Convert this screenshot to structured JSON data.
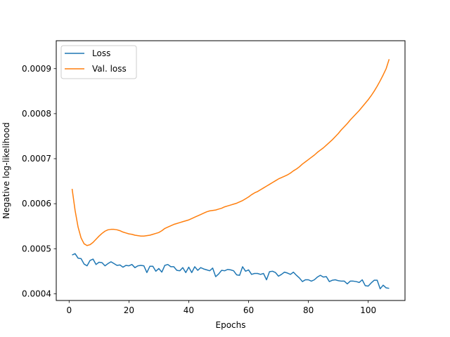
{
  "chart_data": {
    "type": "line",
    "xlabel": "Epochs",
    "ylabel": "Negative log-likelihood",
    "xlim": [
      -4.3,
      112.3
    ],
    "ylim": [
      0.000385,
      0.000962
    ],
    "xticks": [
      0,
      20,
      40,
      60,
      80,
      100
    ],
    "xtick_labels": [
      "0",
      "20",
      "40",
      "60",
      "80",
      "100"
    ],
    "yticks": [
      0.0004,
      0.0005,
      0.0006,
      0.0007,
      0.0008,
      0.0009
    ],
    "ytick_labels": [
      "0.0004",
      "0.0005",
      "0.0006",
      "0.0007",
      "0.0008",
      "0.0009"
    ],
    "grid": false,
    "legend_position": "top-left",
    "series": [
      {
        "name": "Loss",
        "color": "#1f77b4",
        "x": [
          1,
          2,
          3,
          4,
          5,
          6,
          7,
          8,
          9,
          10,
          11,
          12,
          13,
          14,
          15,
          16,
          17,
          18,
          19,
          20,
          21,
          22,
          23,
          24,
          25,
          26,
          27,
          28,
          29,
          30,
          31,
          32,
          33,
          34,
          35,
          36,
          37,
          38,
          39,
          40,
          41,
          42,
          43,
          44,
          45,
          46,
          47,
          48,
          49,
          50,
          51,
          52,
          53,
          54,
          55,
          56,
          57,
          58,
          59,
          60,
          61,
          62,
          63,
          64,
          65,
          66,
          67,
          68,
          69,
          70,
          71,
          72,
          73,
          74,
          75,
          76,
          77,
          78,
          79,
          80,
          81,
          82,
          83,
          84,
          85,
          86,
          87,
          88,
          89,
          90,
          91,
          92,
          93,
          94,
          95,
          96,
          97,
          98,
          99,
          100,
          101,
          102,
          103,
          104,
          105,
          106,
          107
        ],
        "values": [
          0.000486,
          0.000489,
          0.000479,
          0.000478,
          0.000466,
          0.000462,
          0.000474,
          0.000477,
          0.000465,
          0.00047,
          0.000469,
          0.000462,
          0.000467,
          0.000471,
          0.000467,
          0.000463,
          0.000464,
          0.000459,
          0.000463,
          0.000462,
          0.000465,
          0.000458,
          0.000462,
          0.000463,
          0.000462,
          0.000447,
          0.000461,
          0.000461,
          0.00045,
          0.000456,
          0.000448,
          0.000463,
          0.000465,
          0.00046,
          0.00046,
          0.000452,
          0.000451,
          0.000458,
          0.000447,
          0.000459,
          0.000447,
          0.00046,
          0.000452,
          0.000458,
          0.000455,
          0.000453,
          0.000451,
          0.000457,
          0.000438,
          0.000444,
          0.000452,
          0.000451,
          0.000454,
          0.000453,
          0.000451,
          0.000442,
          0.000441,
          0.00046,
          0.00045,
          0.000453,
          0.000443,
          0.000445,
          0.000445,
          0.000443,
          0.000445,
          0.000431,
          0.000449,
          0.00045,
          0.000447,
          0.000439,
          0.000443,
          0.000448,
          0.000446,
          0.000443,
          0.000448,
          0.000441,
          0.000435,
          0.000427,
          0.000431,
          0.000431,
          0.000428,
          0.000431,
          0.000437,
          0.000441,
          0.000437,
          0.000438,
          0.000427,
          0.00043,
          0.000431,
          0.000429,
          0.000428,
          0.000428,
          0.000422,
          0.000428,
          0.000428,
          0.000427,
          0.000425,
          0.000431,
          0.000418,
          0.000417,
          0.000424,
          0.00043,
          0.00043,
          0.000411,
          0.000419,
          0.000413,
          0.000412
        ]
      },
      {
        "name": "Val. loss",
        "color": "#ff7f0e",
        "x": [
          1,
          2,
          3,
          4,
          5,
          6,
          7,
          8,
          9,
          10,
          11,
          12,
          13,
          14,
          15,
          16,
          17,
          18,
          19,
          20,
          21,
          22,
          23,
          24,
          25,
          26,
          27,
          28,
          29,
          30,
          31,
          32,
          33,
          34,
          35,
          36,
          37,
          38,
          39,
          40,
          41,
          42,
          43,
          44,
          45,
          46,
          47,
          48,
          49,
          50,
          51,
          52,
          53,
          54,
          55,
          56,
          57,
          58,
          59,
          60,
          61,
          62,
          63,
          64,
          65,
          66,
          67,
          68,
          69,
          70,
          71,
          72,
          73,
          74,
          75,
          76,
          77,
          78,
          79,
          80,
          81,
          82,
          83,
          84,
          85,
          86,
          87,
          88,
          89,
          90,
          91,
          92,
          93,
          94,
          95,
          96,
          97,
          98,
          99,
          100,
          101,
          102,
          103,
          104,
          105,
          106,
          107
        ],
        "values": [
          0.000633,
          0.000585,
          0.000548,
          0.000524,
          0.000511,
          0.000507,
          0.000509,
          0.000514,
          0.000521,
          0.000528,
          0.000534,
          0.000539,
          0.000542,
          0.000543,
          0.000543,
          0.000542,
          0.00054,
          0.000537,
          0.000535,
          0.000533,
          0.000532,
          0.00053,
          0.000529,
          0.000528,
          0.000528,
          0.000529,
          0.00053,
          0.000532,
          0.000534,
          0.000536,
          0.00054,
          0.000545,
          0.000548,
          0.000551,
          0.000554,
          0.000556,
          0.000558,
          0.00056,
          0.000562,
          0.000564,
          0.000567,
          0.00057,
          0.000573,
          0.000576,
          0.000579,
          0.000582,
          0.000584,
          0.000585,
          0.000586,
          0.000588,
          0.00059,
          0.000593,
          0.000595,
          0.000597,
          0.000599,
          0.000601,
          0.000604,
          0.000607,
          0.000611,
          0.000615,
          0.00062,
          0.000624,
          0.000627,
          0.000631,
          0.000635,
          0.000639,
          0.000643,
          0.000647,
          0.000651,
          0.000655,
          0.000658,
          0.000661,
          0.000664,
          0.000668,
          0.000673,
          0.000677,
          0.000682,
          0.000688,
          0.000693,
          0.000698,
          0.000703,
          0.000708,
          0.000714,
          0.000719,
          0.000724,
          0.00073,
          0.000736,
          0.000742,
          0.000749,
          0.000756,
          0.000764,
          0.000771,
          0.000778,
          0.000786,
          0.000793,
          0.0008,
          0.000807,
          0.000815,
          0.000823,
          0.000831,
          0.00084,
          0.00085,
          0.000861,
          0.000873,
          0.000886,
          0.0009,
          0.000921
        ]
      }
    ]
  }
}
